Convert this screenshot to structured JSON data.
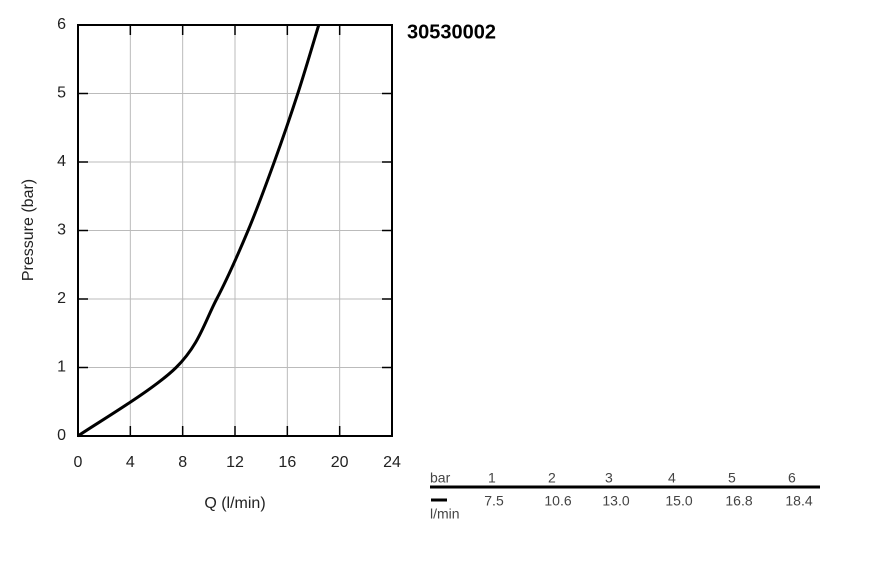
{
  "chart_data": {
    "type": "line",
    "title": "30530002",
    "x_label": "Q (l/min)",
    "y_label": "Pressure (bar)",
    "x": [
      0,
      7.5,
      10.6,
      13,
      15,
      16.8,
      18.4
    ],
    "values": [
      0,
      1,
      2,
      3,
      4,
      5,
      6
    ],
    "color": "#000000",
    "xlim": [
      0,
      24
    ],
    "xticks": [
      0,
      4,
      8,
      12,
      16,
      20,
      24
    ],
    "ylim": [
      0,
      6
    ],
    "yticks": [
      0,
      1,
      2,
      3,
      4,
      5,
      6
    ],
    "grid": true
  },
  "table": {
    "header": [
      "bar",
      "1",
      "2",
      "3",
      "4",
      "5",
      "6"
    ],
    "rows": [
      [
        "l/min",
        "7.5",
        "10.6",
        "13.0",
        "15.0",
        "16.8",
        "18.4"
      ]
    ]
  }
}
